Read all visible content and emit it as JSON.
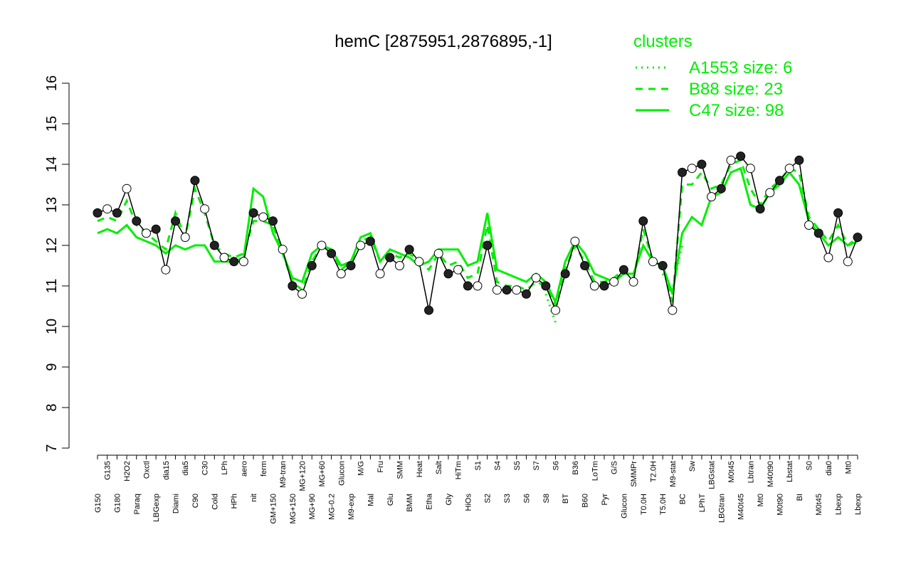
{
  "chart_data": {
    "type": "line",
    "title": "hemC [2875951,2876895,-1]",
    "categories": [
      "G150",
      "G135",
      "G180",
      "H2O2",
      "Paraq",
      "Oxctl",
      "LBGexp",
      "dia15",
      "Diami",
      "dia5",
      "C90",
      "C30",
      "Cold",
      "LPh",
      "HPh",
      "aero",
      "nit",
      "ferm",
      "GM+150",
      "M9-tran",
      "MG+150",
      "MG+120",
      "MG+90",
      "MG+60",
      "MG-0.2",
      "Glucon",
      "M9-exp",
      "M/G",
      "Mal",
      "Fru",
      "Glu",
      "SMM",
      "BMM",
      "Heat",
      "Etha",
      "Salt",
      "Gly",
      "HiTm",
      "HiOs",
      "S1",
      "S2",
      "S4",
      "S3",
      "S5",
      "S6",
      "S7",
      "S8",
      "S6",
      "BT",
      "B36",
      "B60",
      "LoTm",
      "Pyr",
      "G/S",
      "Glucon",
      "SMMPr",
      "T0.0H",
      "T2.0H",
      "T5.0H",
      "M9-stat",
      "BC",
      "Sw",
      "LPhT",
      "LBGstat",
      "LBGtran",
      "M0t45",
      "M40t45",
      "Lbtran",
      "Mt0",
      "M40t90",
      "M0t90",
      "Lbstat",
      "BI",
      "S0",
      "M0t45",
      "dia0",
      "Lbexp",
      "Mt0",
      "Lbexp"
    ],
    "values": [
      12.8,
      12.9,
      12.8,
      13.4,
      12.6,
      12.3,
      12.4,
      11.4,
      12.6,
      12.2,
      13.6,
      12.9,
      12.0,
      11.7,
      11.6,
      11.6,
      12.8,
      12.7,
      12.6,
      11.9,
      11.0,
      10.8,
      11.5,
      12.0,
      11.8,
      11.3,
      11.5,
      12.0,
      12.1,
      11.3,
      11.7,
      11.5,
      11.9,
      11.6,
      10.4,
      11.8,
      11.3,
      11.4,
      11.0,
      11.0,
      12.0,
      10.9,
      10.9,
      10.9,
      10.8,
      11.2,
      11.0,
      10.4,
      11.3,
      12.1,
      11.5,
      11.0,
      11.0,
      11.1,
      11.4,
      11.1,
      12.6,
      11.6,
      11.5,
      10.4,
      13.8,
      13.9,
      14.0,
      13.2,
      13.4,
      14.1,
      14.2,
      13.9,
      12.9,
      13.3,
      13.6,
      13.9,
      14.1,
      12.5,
      12.3,
      11.7,
      12.8,
      11.6,
      12.2
    ],
    "color": "#000000",
    "legend_title": "clusters",
    "series": [
      {
        "name": "A1553 size: 6",
        "color": "#00ee00",
        "style": "dotted",
        "values": [
          null,
          null,
          null,
          null,
          null,
          null,
          null,
          null,
          null,
          null,
          null,
          null,
          null,
          null,
          null,
          null,
          null,
          null,
          null,
          null,
          null,
          null,
          null,
          null,
          null,
          null,
          null,
          null,
          null,
          null,
          null,
          null,
          null,
          null,
          null,
          null,
          null,
          null,
          null,
          null,
          null,
          null,
          null,
          null,
          null,
          null,
          10.8,
          10.1,
          null,
          null,
          null,
          null,
          null,
          null,
          null,
          null,
          null,
          null,
          11.3,
          10.9,
          12.0,
          null,
          null,
          null,
          null,
          null,
          null,
          null,
          null,
          null,
          null,
          null,
          null,
          null,
          null,
          null,
          null,
          null,
          null
        ]
      },
      {
        "name": "B88 size: 23",
        "color": "#00ee00",
        "style": "dashed",
        "values": [
          12.6,
          12.7,
          12.6,
          13.1,
          12.5,
          12.3,
          12.1,
          11.9,
          12.8,
          12.2,
          13.4,
          12.8,
          12.0,
          11.8,
          11.7,
          11.8,
          12.6,
          12.6,
          12.5,
          11.8,
          11.1,
          10.9,
          11.6,
          12.0,
          11.9,
          11.4,
          11.6,
          12.1,
          12.2,
          11.6,
          11.8,
          11.7,
          11.8,
          11.6,
          11.4,
          11.8,
          11.5,
          11.6,
          11.2,
          11.3,
          12.5,
          11.1,
          11.0,
          11.0,
          10.9,
          11.1,
          11.0,
          10.5,
          11.4,
          12.0,
          11.6,
          11.1,
          11.1,
          11.2,
          11.4,
          11.2,
          12.4,
          11.6,
          11.5,
          10.6,
          13.5,
          13.5,
          13.8,
          13.4,
          13.5,
          14.0,
          14.1,
          13.4,
          13.0,
          13.4,
          13.6,
          13.9,
          13.8,
          12.7,
          12.4,
          12.1,
          12.5,
          12.0,
          12.2
        ]
      },
      {
        "name": "C47 size: 98",
        "color": "#00ee00",
        "style": "solid",
        "values": [
          12.3,
          12.4,
          12.3,
          12.5,
          12.2,
          12.1,
          12.0,
          11.8,
          12.0,
          11.9,
          12.0,
          12.0,
          11.6,
          11.6,
          11.6,
          11.7,
          13.4,
          13.2,
          12.3,
          11.8,
          11.2,
          11.1,
          11.8,
          12.0,
          11.9,
          11.5,
          11.6,
          12.2,
          12.3,
          11.6,
          11.9,
          11.8,
          11.7,
          11.5,
          11.6,
          11.9,
          11.9,
          11.9,
          11.5,
          11.6,
          12.8,
          11.4,
          11.3,
          11.2,
          11.1,
          11.3,
          11.1,
          10.6,
          11.6,
          12.1,
          11.8,
          11.3,
          11.2,
          11.1,
          11.3,
          11.3,
          12.0,
          11.6,
          11.5,
          10.8,
          12.3,
          12.7,
          12.5,
          13.2,
          13.3,
          13.8,
          13.9,
          13.0,
          12.9,
          13.3,
          13.5,
          13.8,
          13.5,
          12.6,
          12.3,
          12.0,
          12.2,
          12.0,
          12.1
        ]
      }
    ],
    "ylim": [
      7,
      16
    ],
    "yticks": [
      7,
      8,
      9,
      10,
      11,
      12,
      13,
      14,
      15,
      16
    ]
  }
}
